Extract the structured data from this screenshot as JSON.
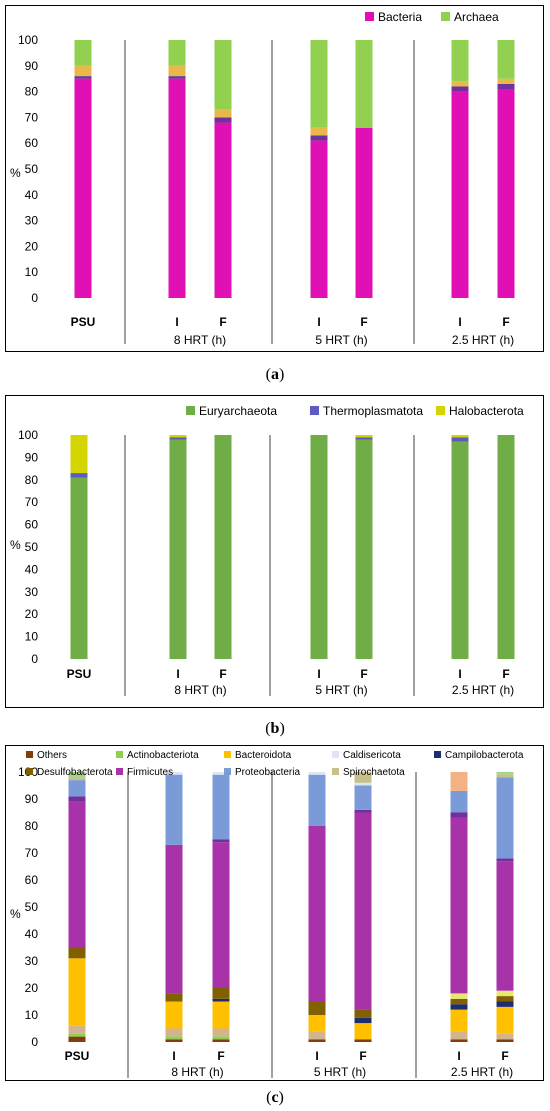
{
  "chart_data": [
    {
      "panel": "a",
      "type": "bar",
      "stacked": true,
      "ylabel": "%",
      "ylim": [
        0,
        100
      ],
      "yticks": [
        0,
        10,
        20,
        30,
        40,
        50,
        60,
        70,
        80,
        90,
        100
      ],
      "categories": [
        "PSU",
        "I",
        "F",
        "I",
        "F",
        "I",
        "F"
      ],
      "groups": [
        {
          "label": "",
          "categories": [
            "PSU"
          ]
        },
        {
          "label": "8 HRT (h)",
          "categories": [
            "I",
            "F"
          ]
        },
        {
          "label": "5 HRT (h)",
          "categories": [
            "I",
            "F"
          ]
        },
        {
          "label": "2.5 HRT (h)",
          "categories": [
            "I",
            "F"
          ]
        }
      ],
      "legend_position": "top-right",
      "series": [
        {
          "name": "Bacteria",
          "color": "#e010b4",
          "values": [
            85,
            85,
            68,
            61,
            66,
            80,
            81
          ]
        },
        {
          "name": "",
          "color": "#7030a0",
          "values": [
            1,
            1,
            2,
            2,
            0,
            2,
            2
          ]
        },
        {
          "name": "",
          "color": "#e8b84a",
          "values": [
            4,
            4,
            3,
            3,
            0,
            2,
            2
          ]
        },
        {
          "name": "Archaea",
          "color": "#92d050",
          "values": [
            10,
            10,
            27,
            34,
            34,
            16,
            15
          ]
        }
      ]
    },
    {
      "panel": "b",
      "type": "bar",
      "stacked": true,
      "ylabel": "%",
      "ylim": [
        0,
        100
      ],
      "yticks": [
        0,
        10,
        20,
        30,
        40,
        50,
        60,
        70,
        80,
        90,
        100
      ],
      "categories": [
        "PSU",
        "I",
        "F",
        "I",
        "F",
        "I",
        "F"
      ],
      "groups": [
        {
          "label": "",
          "categories": [
            "PSU"
          ]
        },
        {
          "label": "8 HRT (h)",
          "categories": [
            "I",
            "F"
          ]
        },
        {
          "label": "5 HRT (h)",
          "categories": [
            "I",
            "F"
          ]
        },
        {
          "label": "2.5 HRT (h)",
          "categories": [
            "I",
            "F"
          ]
        }
      ],
      "legend_position": "top-right",
      "series": [
        {
          "name": "Euryarchaeota",
          "color": "#70ad47",
          "values": [
            81,
            98,
            100,
            100,
            98,
            97,
            100
          ]
        },
        {
          "name": "Thermoplasmatota",
          "color": "#5b5bc0",
          "values": [
            2,
            1,
            0,
            0,
            1,
            2,
            0
          ]
        },
        {
          "name": "Halobacterota",
          "color": "#d4d400",
          "values": [
            17,
            1,
            0,
            0,
            1,
            1,
            0
          ]
        }
      ]
    },
    {
      "panel": "c",
      "type": "bar",
      "stacked": true,
      "ylabel": "%",
      "ylim": [
        0,
        100
      ],
      "yticks": [
        0,
        10,
        20,
        30,
        40,
        50,
        60,
        70,
        80,
        90,
        100
      ],
      "categories": [
        "PSU",
        "I",
        "F",
        "I",
        "F",
        "I",
        "F"
      ],
      "groups": [
        {
          "label": "",
          "categories": [
            "PSU"
          ]
        },
        {
          "label": "8 HRT (h)",
          "categories": [
            "I",
            "F"
          ]
        },
        {
          "label": "5 HRT (h)",
          "categories": [
            "I",
            "F"
          ]
        },
        {
          "label": "2.5 HRT (h)",
          "categories": [
            "I",
            "F"
          ]
        }
      ],
      "legend_position": "top",
      "series": [
        {
          "name": "Others",
          "color": "#843c0c",
          "values": [
            2,
            1,
            1,
            1,
            1,
            1,
            1
          ]
        },
        {
          "name": "Actinobacteriota",
          "color": "#8fd14f",
          "values": [
            1,
            1,
            1,
            0,
            0,
            0,
            0
          ]
        },
        {
          "name": "",
          "color": "#d4b48c",
          "values": [
            3,
            3,
            3,
            3,
            0,
            3,
            2
          ]
        },
        {
          "name": "Bacteroidota",
          "color": "#ffc000",
          "values": [
            25,
            10,
            10,
            6,
            6,
            8,
            10
          ]
        },
        {
          "name": "Campilobacterota",
          "color": "#1f2d6e",
          "values": [
            0,
            0,
            1,
            0,
            2,
            2,
            2
          ]
        },
        {
          "name": "Desulfobacterota",
          "color": "#806000",
          "values": [
            4,
            3,
            4,
            5,
            3,
            2,
            2
          ]
        },
        {
          "name": "",
          "color": "#e8e870",
          "values": [
            0,
            0,
            0,
            0,
            0,
            2,
            2
          ]
        },
        {
          "name": "Firmicutes",
          "color": "#a832a8",
          "values": [
            54,
            55,
            54,
            65,
            73,
            65,
            48
          ]
        },
        {
          "name": "",
          "color": "#7030a0",
          "values": [
            2,
            0,
            1,
            0,
            1,
            2,
            1
          ]
        },
        {
          "name": "Proteobacteria",
          "color": "#7b9bd8",
          "values": [
            6,
            26,
            24,
            19,
            9,
            8,
            30
          ]
        },
        {
          "name": "Caldisericota",
          "color": "#dde6f4",
          "values": [
            0,
            1,
            1,
            1,
            1,
            0,
            0
          ]
        },
        {
          "name": "Spirochaetota",
          "color": "#c8c08a",
          "values": [
            1,
            0,
            0,
            0,
            4,
            0,
            1
          ]
        },
        {
          "name": "",
          "color": "#f4b183",
          "values": [
            0,
            0,
            0,
            0,
            0,
            7,
            0
          ]
        },
        {
          "name": "",
          "color": "#a9d18e",
          "values": [
            2,
            0,
            0,
            0,
            0,
            0,
            1
          ]
        }
      ]
    }
  ],
  "legends": {
    "a": [
      "Bacteria",
      "Archaea"
    ],
    "b": [
      "Euryarchaeota",
      "Thermoplasmatota",
      "Halobacterota"
    ],
    "c": [
      "Others",
      "Actinobacteriota",
      "Bacteroidota",
      "Caldisericota",
      "Campilobacterota",
      "Desulfobacterota",
      "Firmicutes",
      "Proteobacteria",
      "Spirochaetota"
    ]
  },
  "captions": {
    "a": "a",
    "b": "b",
    "c": "c"
  }
}
